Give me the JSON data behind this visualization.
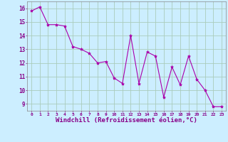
{
  "x": [
    0,
    1,
    2,
    3,
    4,
    5,
    6,
    7,
    8,
    9,
    10,
    11,
    12,
    13,
    14,
    15,
    16,
    17,
    18,
    19,
    20,
    21,
    22,
    23
  ],
  "y": [
    15.8,
    16.1,
    14.8,
    14.8,
    14.7,
    13.2,
    13.0,
    12.7,
    12.0,
    12.1,
    10.9,
    10.5,
    14.0,
    10.5,
    12.8,
    12.5,
    9.5,
    11.7,
    10.4,
    12.5,
    10.8,
    10.0,
    8.8,
    8.8
  ],
  "line_color": "#aa00aa",
  "marker": "*",
  "marker_size": 3,
  "xlabel": "Windchill (Refroidissement éolien,°C)",
  "xlabel_fontsize": 6.5,
  "ylabel_ticks": [
    9,
    10,
    11,
    12,
    13,
    14,
    15,
    16
  ],
  "xlim": [
    -0.5,
    23.5
  ],
  "ylim": [
    8.5,
    16.5
  ],
  "background_color": "#cceeff",
  "grid_color": "#aaccbb",
  "tick_color": "#880088",
  "label_color": "#880088",
  "spine_color": "#888888"
}
